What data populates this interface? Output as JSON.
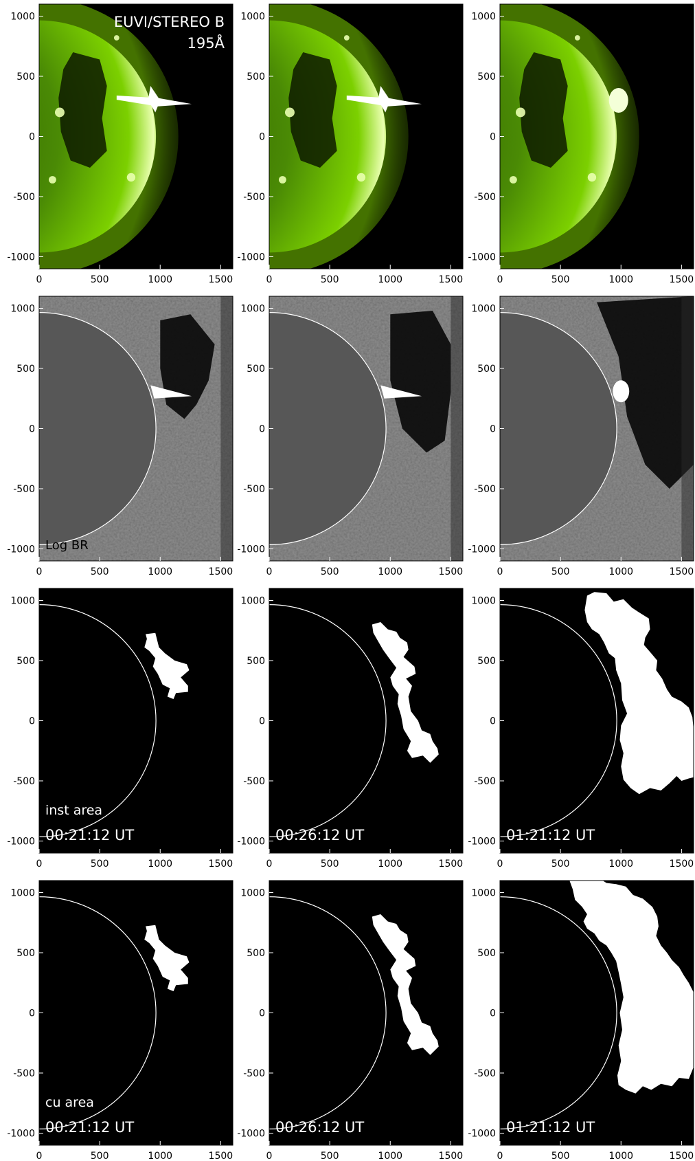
{
  "figure": {
    "instrument_label": "EUVI/STEREO B",
    "wavelength_label": "195Å",
    "row2_label": "Log BR",
    "row3_label": "inst area",
    "row4_label": "cu area",
    "times": [
      "00:21:12 UT",
      "00:26:12 UT",
      "01:21:12 UT"
    ],
    "colors": {
      "euv_green": "#7cd000",
      "euv_bright": "#eaffb0",
      "diff_gray": "#6a6a6a",
      "disk_gray": "#575757",
      "mask_white": "#ffffff",
      "limb_line": "#ffffff"
    }
  },
  "axes": {
    "x_ticks": [
      "0",
      "500",
      "1000",
      "1500"
    ],
    "y_ticks": [
      "1000",
      "500",
      "0",
      "-500",
      "-1000"
    ]
  }
}
